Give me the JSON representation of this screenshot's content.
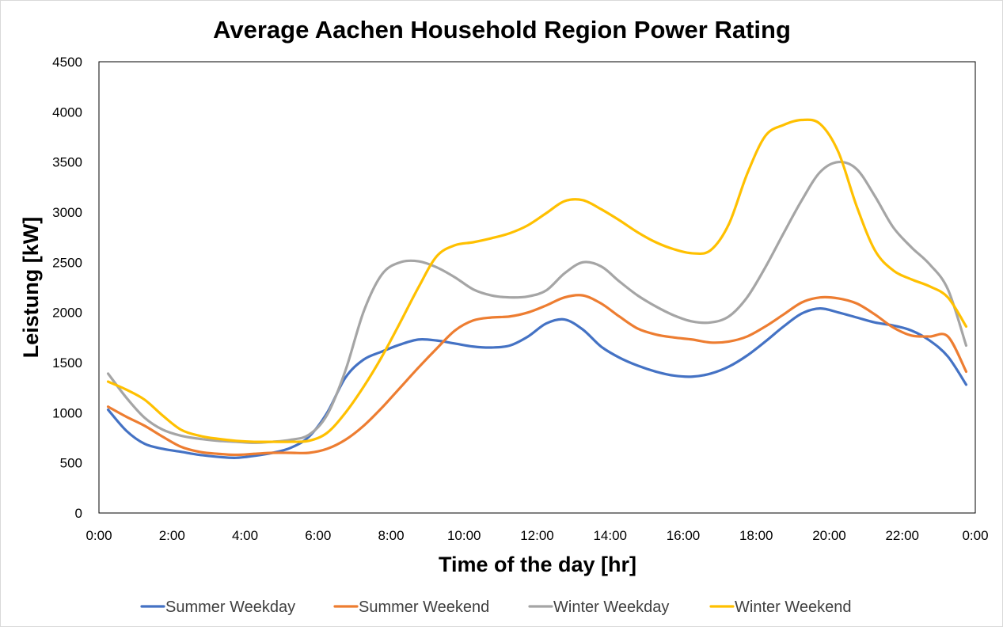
{
  "chart_data": {
    "type": "line",
    "title": "Average Aachen Household Region Power Rating",
    "xlabel": "Time of the day [hr]",
    "ylabel": "Leistung [kW]",
    "x_tick_labels": [
      "0:00",
      "2:00",
      "4:00",
      "6:00",
      "8:00",
      "10:00",
      "12:00",
      "14:00",
      "16:00",
      "18:00",
      "20:00",
      "22:00",
      "0:00"
    ],
    "y_tick_labels": [
      "0",
      "500",
      "1000",
      "1500",
      "2000",
      "2500",
      "3000",
      "3500",
      "4000",
      "4500"
    ],
    "xlim": [
      0,
      24
    ],
    "ylim": [
      0,
      4500
    ],
    "grid": false,
    "legend": "bottom",
    "x": [
      0.25,
      0.75,
      1.25,
      1.75,
      2.25,
      2.75,
      3.25,
      3.75,
      4.25,
      4.75,
      5.25,
      5.75,
      6.25,
      6.75,
      7.25,
      7.75,
      8.25,
      8.75,
      9.25,
      9.75,
      10.25,
      10.75,
      11.25,
      11.75,
      12.25,
      12.75,
      13.25,
      13.75,
      14.25,
      14.75,
      15.25,
      15.75,
      16.25,
      16.75,
      17.25,
      17.75,
      18.25,
      18.75,
      19.25,
      19.75,
      20.25,
      20.75,
      21.25,
      21.75,
      22.25,
      22.75,
      23.25,
      23.75
    ],
    "series": [
      {
        "name": "Summer Weekday",
        "color": "#4472C4",
        "values": [
          1030,
          820,
          690,
          640,
          610,
          580,
          560,
          550,
          570,
          600,
          650,
          760,
          1000,
          1350,
          1530,
          1610,
          1680,
          1730,
          1720,
          1690,
          1660,
          1650,
          1670,
          1760,
          1890,
          1930,
          1830,
          1660,
          1550,
          1470,
          1410,
          1370,
          1360,
          1390,
          1460,
          1570,
          1710,
          1860,
          1990,
          2040,
          2000,
          1950,
          1900,
          1870,
          1820,
          1720,
          1560,
          1280
        ]
      },
      {
        "name": "Summer Weekend",
        "color": "#ED7D31",
        "values": [
          1060,
          960,
          870,
          760,
          660,
          610,
          590,
          580,
          590,
          600,
          600,
          600,
          640,
          730,
          870,
          1050,
          1250,
          1450,
          1640,
          1820,
          1920,
          1950,
          1960,
          2000,
          2070,
          2150,
          2170,
          2090,
          1960,
          1840,
          1780,
          1750,
          1730,
          1700,
          1710,
          1760,
          1860,
          1980,
          2100,
          2150,
          2140,
          2090,
          1980,
          1850,
          1770,
          1760,
          1760,
          1410
        ]
      },
      {
        "name": "Winter Weekday",
        "color": "#A5A5A5",
        "values": [
          1390,
          1150,
          950,
          830,
          770,
          740,
          720,
          710,
          700,
          710,
          730,
          780,
          980,
          1420,
          2010,
          2380,
          2500,
          2510,
          2450,
          2350,
          2230,
          2170,
          2150,
          2160,
          2220,
          2390,
          2500,
          2460,
          2310,
          2170,
          2060,
          1970,
          1910,
          1900,
          1960,
          2150,
          2450,
          2790,
          3120,
          3400,
          3500,
          3430,
          3160,
          2850,
          2650,
          2480,
          2230,
          1670
        ]
      },
      {
        "name": "Winter Weekend",
        "color": "#FFC000",
        "values": [
          1310,
          1230,
          1130,
          970,
          830,
          770,
          740,
          720,
          710,
          710,
          710,
          720,
          800,
          1000,
          1260,
          1560,
          1900,
          2250,
          2560,
          2670,
          2700,
          2740,
          2790,
          2870,
          2990,
          3110,
          3120,
          3030,
          2920,
          2800,
          2700,
          2630,
          2590,
          2620,
          2880,
          3380,
          3760,
          3870,
          3920,
          3880,
          3600,
          3060,
          2620,
          2420,
          2330,
          2260,
          2150,
          1860
        ]
      }
    ]
  }
}
